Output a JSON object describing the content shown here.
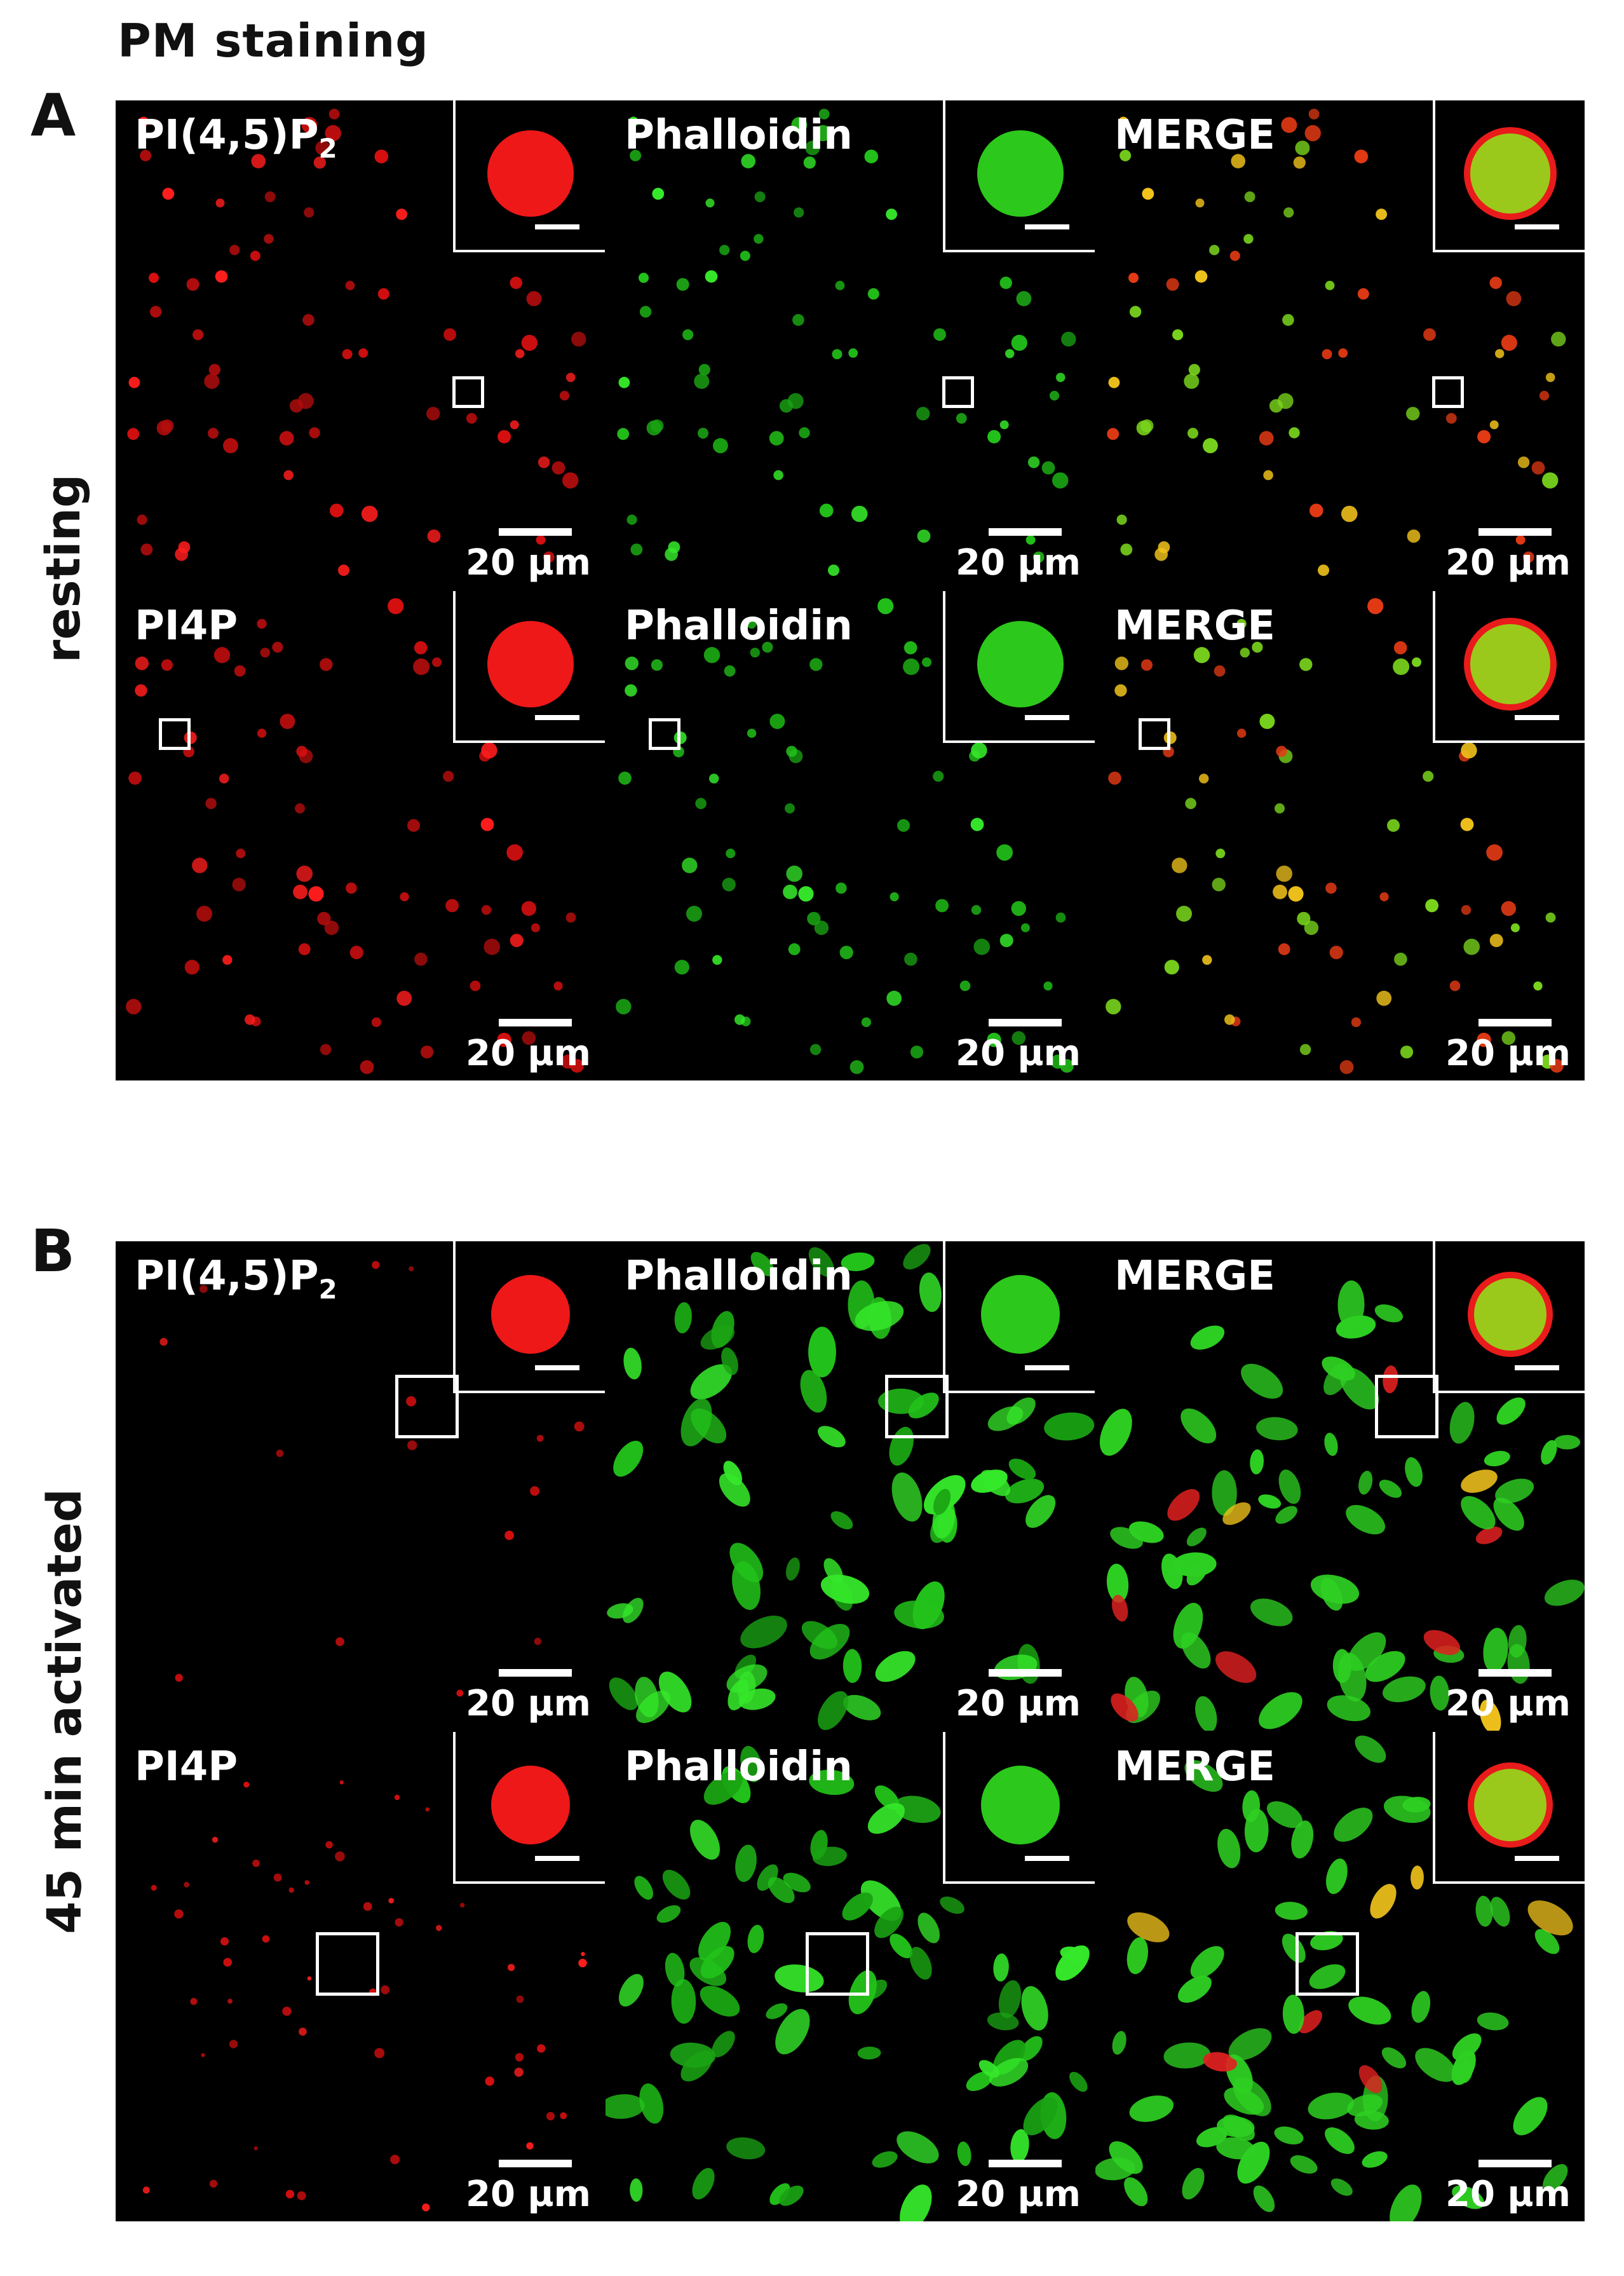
{
  "title": "PM staining",
  "panels": [
    {
      "letter": "A",
      "condition": "resting",
      "rows": [
        {
          "tiles": [
            {
              "label": "PI(4,5)P",
              "sub": "2",
              "scale": "20 µm",
              "channel": "red"
            },
            {
              "label": "Phalloidin",
              "sub": "",
              "scale": "20 µm",
              "channel": "green"
            },
            {
              "label": "MERGE",
              "sub": "",
              "scale": "20 µm",
              "channel": "merge"
            }
          ]
        },
        {
          "tiles": [
            {
              "label": "PI4P",
              "sub": "",
              "scale": "20 µm",
              "channel": "red"
            },
            {
              "label": "Phalloidin",
              "sub": "",
              "scale": "20 µm",
              "channel": "green"
            },
            {
              "label": "MERGE",
              "sub": "",
              "scale": "20 µm",
              "channel": "merge"
            }
          ]
        }
      ]
    },
    {
      "letter": "B",
      "condition": "45 min activated",
      "rows": [
        {
          "tiles": [
            {
              "label": "PI(4,5)P",
              "sub": "2",
              "scale": "20 µm",
              "channel": "red"
            },
            {
              "label": "Phalloidin",
              "sub": "",
              "scale": "20 µm",
              "channel": "green"
            },
            {
              "label": "MERGE",
              "sub": "",
              "scale": "20 µm",
              "channel": "merge"
            }
          ]
        },
        {
          "tiles": [
            {
              "label": "PI4P",
              "sub": "",
              "scale": "20 µm",
              "channel": "red"
            },
            {
              "label": "Phalloidin",
              "sub": "",
              "scale": "20 µm",
              "channel": "green"
            },
            {
              "label": "MERGE",
              "sub": "",
              "scale": "20 µm",
              "channel": "merge"
            }
          ]
        }
      ]
    }
  ],
  "colors": {
    "red": "#e8161a",
    "green": "#28d21e",
    "merge": "#d9b21c",
    "background": "#000000"
  }
}
